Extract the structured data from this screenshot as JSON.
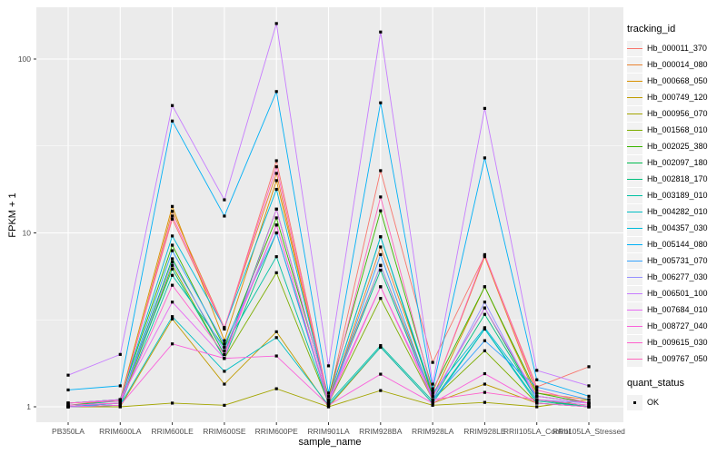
{
  "chart_data": {
    "type": "line",
    "title": "",
    "xlabel": "sample_name",
    "ylabel": "FPKM + 1",
    "y_scale": "log10",
    "y_ticks": [
      1,
      10,
      100
    ],
    "y_minor_ticks": [
      3.162,
      31.62
    ],
    "y_range_approx": [
      0.82,
      194
    ],
    "grid": "on",
    "legend_position": "right",
    "point_shape": "filled-square",
    "point_color": "#000000",
    "x_categories": [
      "PB350LA",
      "RRIM600LA",
      "RRIM600LE",
      "RRIM600SE",
      "RRIM600PE",
      "RRIM901LA",
      "RRIM928BA",
      "RRIM928LA",
      "RRIM928LE",
      "RRII105LA_Control",
      "RRII105LA_Stressed"
    ],
    "series": [
      {
        "name": "Hb_000011_370",
        "color": "#F8766D",
        "values": [
          1.05,
          1.1,
          12,
          2.8,
          26,
          1.1,
          22.8,
          1.8,
          7.4,
          1.3,
          1.7
        ]
      },
      {
        "name": "Hb_000014_080",
        "color": "#EA8331",
        "values": [
          1.0,
          1.05,
          13.3,
          2.85,
          22,
          1.05,
          8.3,
          1.2,
          7.3,
          1.2,
          1.1
        ]
      },
      {
        "name": "Hb_000668_050",
        "color": "#D89000",
        "values": [
          1.02,
          1.1,
          14.2,
          2.4,
          20,
          1.1,
          6.5,
          1.15,
          4.9,
          1.15,
          1.05
        ]
      },
      {
        "name": "Hb_000749_120",
        "color": "#C09B00",
        "values": [
          1.0,
          1.0,
          3.2,
          1.35,
          2.7,
          1.0,
          2.2,
          1.05,
          1.35,
          1.05,
          1.0
        ]
      },
      {
        "name": "Hb_000956_070",
        "color": "#A3A500",
        "values": [
          1.0,
          1.0,
          1.05,
          1.02,
          1.27,
          1.0,
          1.24,
          1.02,
          1.06,
          1.0,
          1.1
        ]
      },
      {
        "name": "Hb_001568_010",
        "color": "#7CAE00",
        "values": [
          1.0,
          1.02,
          6.5,
          1.9,
          5.9,
          1.05,
          4.2,
          1.1,
          2.1,
          1.05,
          1.0
        ]
      },
      {
        "name": "Hb_002025_380",
        "color": "#39B600",
        "values": [
          1.05,
          1.1,
          8.5,
          2.2,
          12.2,
          1.15,
          13.4,
          1.25,
          4.9,
          1.2,
          1.05
        ]
      },
      {
        "name": "Hb_002097_180",
        "color": "#00BB4E",
        "values": [
          1.0,
          1.05,
          7.1,
          2.0,
          13.7,
          1.1,
          9.5,
          1.15,
          3.7,
          1.1,
          1.0
        ]
      },
      {
        "name": "Hb_002818_170",
        "color": "#00BF7D",
        "values": [
          1.02,
          1.08,
          6.2,
          1.9,
          10.0,
          1.08,
          6.1,
          1.1,
          3.4,
          1.1,
          1.02
        ]
      },
      {
        "name": "Hb_003189_010",
        "color": "#00C1A3",
        "values": [
          1.0,
          1.02,
          5.7,
          2.2,
          7.3,
          1.05,
          2.25,
          1.08,
          2.8,
          1.08,
          1.0
        ]
      },
      {
        "name": "Hb_004282_010",
        "color": "#00BFC4",
        "values": [
          1.0,
          1.02,
          3.3,
          1.6,
          2.5,
          1.02,
          2.2,
          1.05,
          2.8,
          1.05,
          1.0
        ]
      },
      {
        "name": "Hb_004357_030",
        "color": "#00BBDA",
        "values": [
          1.05,
          1.1,
          9.6,
          2.85,
          17.8,
          1.1,
          9.5,
          1.2,
          2.85,
          1.15,
          1.05
        ]
      },
      {
        "name": "Hb_005144_080",
        "color": "#00B0F6",
        "values": [
          1.25,
          1.32,
          44,
          12.5,
          65,
          1.2,
          56,
          1.27,
          27,
          1.43,
          1.15
        ]
      },
      {
        "name": "Hb_005731_070",
        "color": "#35A2FF",
        "values": [
          1.0,
          1.05,
          7.9,
          2.3,
          10.0,
          1.05,
          7.5,
          1.1,
          2.4,
          1.3,
          1.1
        ]
      },
      {
        "name": "Hb_006277_030",
        "color": "#9590FF",
        "values": [
          1.02,
          1.05,
          6.8,
          2.1,
          11.1,
          1.05,
          6.5,
          1.1,
          4.0,
          1.1,
          1.05
        ]
      },
      {
        "name": "Hb_006501_100",
        "color": "#C77CFF",
        "values": [
          1.52,
          2.0,
          54,
          15.5,
          160,
          1.72,
          143,
          1.35,
          52,
          1.62,
          1.32
        ]
      },
      {
        "name": "Hb_007684_010",
        "color": "#E76BF3",
        "values": [
          1.05,
          1.1,
          4.0,
          1.9,
          13.7,
          1.1,
          4.9,
          1.15,
          3.7,
          1.15,
          1.05
        ]
      },
      {
        "name": "Hb_008727_040",
        "color": "#FA62DB",
        "values": [
          1.0,
          1.02,
          2.3,
          1.9,
          1.96,
          1.02,
          1.54,
          1.05,
          1.55,
          1.05,
          1.0
        ]
      },
      {
        "name": "Hb_009615_030",
        "color": "#FF61CC",
        "values": [
          1.02,
          1.05,
          5.0,
          2.0,
          11.1,
          1.05,
          4.9,
          1.1,
          1.21,
          1.1,
          1.02
        ]
      },
      {
        "name": "Hb_009767_050",
        "color": "#FF67BD",
        "values": [
          1.05,
          1.08,
          12.5,
          2.85,
          24,
          1.08,
          16.1,
          1.2,
          7.5,
          1.25,
          1.05
        ]
      }
    ]
  },
  "legend": {
    "color_legend_title": "tracking_id",
    "shape_legend_title": "quant_status",
    "shape_legend_items": [
      {
        "label": "OK"
      }
    ]
  },
  "theme": {
    "panel_bg": "#EBEBEB",
    "grid_color": "#FFFFFF",
    "axis_text_color": "#4D4D4D",
    "tick_color": "#333333",
    "legend_key_bg": "#F2F2F2",
    "background": "#FFFFFF"
  }
}
